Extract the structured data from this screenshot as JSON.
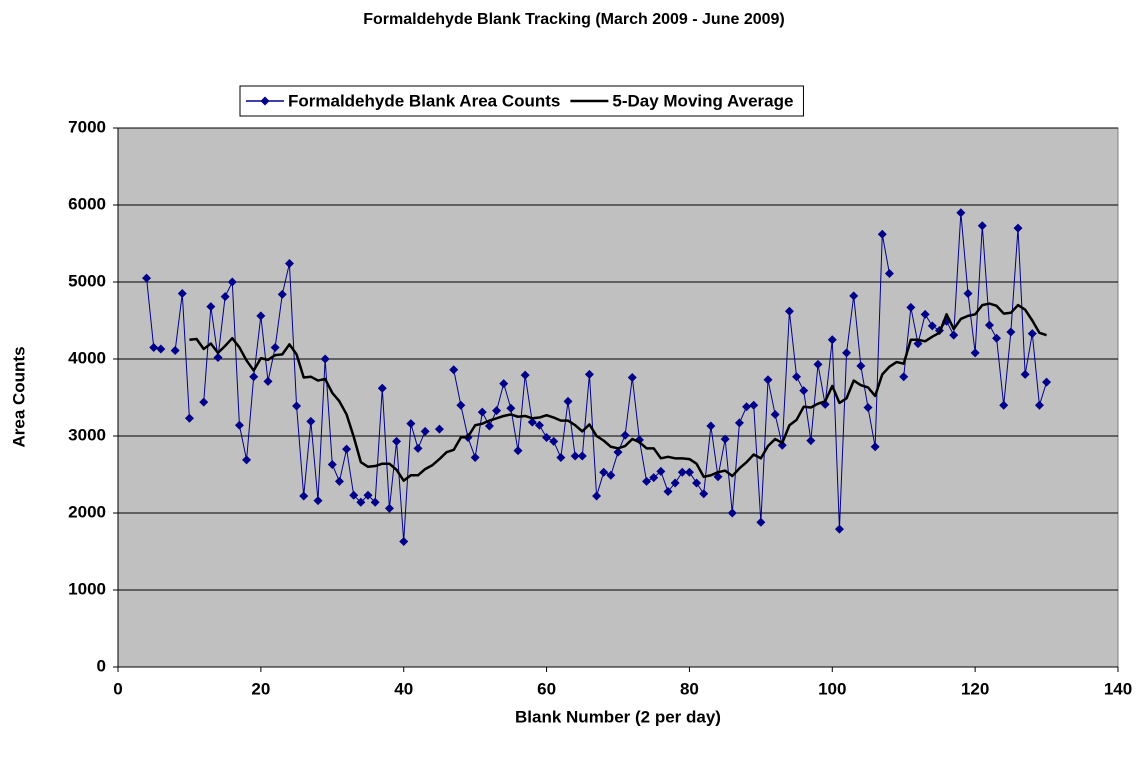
{
  "chart_data": {
    "type": "line",
    "title": "Formaldehyde Blank Tracking (March 2009 - June 2009)",
    "x_label": "Blank Number (2 per day)",
    "y_label": "Area Counts",
    "x": [
      4,
      5,
      6,
      7,
      8,
      9,
      10,
      11,
      12,
      13,
      14,
      15,
      16,
      17,
      18,
      19,
      20,
      21,
      22,
      23,
      24,
      25,
      26,
      27,
      28,
      29,
      30,
      31,
      32,
      33,
      34,
      35,
      36,
      37,
      38,
      39,
      40,
      41,
      42,
      43,
      44,
      45,
      46,
      47,
      48,
      49,
      50,
      51,
      52,
      53,
      54,
      55,
      56,
      57,
      58,
      59,
      60,
      61,
      62,
      63,
      64,
      65,
      66,
      67,
      68,
      69,
      70,
      71,
      72,
      73,
      74,
      75,
      76,
      77,
      78,
      79,
      80,
      81,
      82,
      83,
      84,
      85,
      86,
      87,
      88,
      89,
      90,
      91,
      92,
      93,
      94,
      95,
      96,
      97,
      98,
      99,
      100,
      101,
      102,
      103,
      104,
      105,
      106,
      107,
      108,
      109,
      110,
      111,
      112,
      113,
      114,
      115,
      116,
      117,
      118,
      119,
      120,
      121,
      122,
      123,
      124,
      125,
      126,
      127,
      128,
      129,
      130
    ],
    "series": [
      {
        "name": "Formaldehyde Blank Area Counts",
        "color": "#00008b",
        "marker": "diamond",
        "values": [
          5050,
          4150,
          4130,
          null,
          4110,
          4850,
          3230,
          null,
          3440,
          4680,
          4020,
          4810,
          5000,
          3140,
          2690,
          3770,
          4560,
          3710,
          4150,
          4840,
          5240,
          3390,
          2220,
          3190,
          2160,
          4000,
          2630,
          2410,
          2830,
          2230,
          2140,
          2230,
          2140,
          3620,
          2060,
          2930,
          1630,
          3160,
          2840,
          3060,
          null,
          3090,
          null,
          3860,
          3400,
          2980,
          2720,
          3310,
          3130,
          3330,
          3680,
          3360,
          2810,
          3790,
          3180,
          3140,
          2980,
          2930,
          2720,
          3450,
          2740,
          2740,
          3800,
          2220,
          2530,
          2490,
          2790,
          3010,
          3760,
          2950,
          2410,
          2460,
          2540,
          2280,
          2390,
          2530,
          2530,
          2390,
          2250,
          3130,
          2470,
          2960,
          2000,
          3170,
          3380,
          3400,
          1880,
          3730,
          3280,
          2880,
          4620,
          3770,
          3590,
          2940,
          3930,
          3410,
          4250,
          1790,
          4080,
          4820,
          3910,
          3370,
          2860,
          5620,
          5110,
          null,
          3770,
          4670,
          4200,
          4580,
          4430,
          4370,
          4490,
          4310,
          5900,
          4850,
          4080,
          5730,
          4440,
          4270,
          3400,
          4350,
          5700,
          3800,
          4330,
          3400,
          3700
        ]
      },
      {
        "name": "5-Day Moving Average",
        "color": "#000000",
        "marker": "none",
        "values": [
          null,
          null,
          null,
          null,
          null,
          null,
          4250,
          4260,
          4130,
          4200,
          4080,
          4170,
          4270,
          4150,
          3980,
          3850,
          4010,
          3990,
          4050,
          4060,
          4190,
          4060,
          3760,
          3770,
          3720,
          3740,
          3560,
          3450,
          3280,
          2990,
          2660,
          2600,
          2610,
          2640,
          2640,
          2560,
          2420,
          2490,
          2490,
          2570,
          2620,
          2700,
          2790,
          2820,
          2980,
          2990,
          3140,
          3160,
          3200,
          3230,
          3260,
          3280,
          3250,
          3260,
          3230,
          3240,
          3270,
          3240,
          3200,
          3200,
          3140,
          3060,
          3150,
          3000,
          2940,
          2860,
          2840,
          2870,
          2960,
          2920,
          2840,
          2840,
          2710,
          2730,
          2710,
          2710,
          2700,
          2640,
          2470,
          2490,
          2530,
          2550,
          2480,
          2580,
          2660,
          2760,
          2710,
          2870,
          2960,
          2910,
          3140,
          3210,
          3380,
          3370,
          3420,
          3450,
          3650,
          3430,
          3490,
          3720,
          3660,
          3630,
          3520,
          3800,
          3900,
          3960,
          3940,
          4250,
          4250,
          4230,
          4290,
          4340,
          4580,
          4390,
          4520,
          4560,
          4580,
          4700,
          4720,
          4690,
          4590,
          4600,
          4700,
          4640,
          4500,
          4340,
          4310
        ]
      }
    ],
    "xlim": [
      0,
      140
    ],
    "xticks": [
      0,
      20,
      40,
      60,
      80,
      100,
      120,
      140
    ],
    "ylim": [
      0,
      7000
    ],
    "yticks": [
      0,
      1000,
      2000,
      3000,
      4000,
      5000,
      6000,
      7000
    ],
    "grid": true,
    "plot_background": "#c0c0c0",
    "legend": "top"
  }
}
